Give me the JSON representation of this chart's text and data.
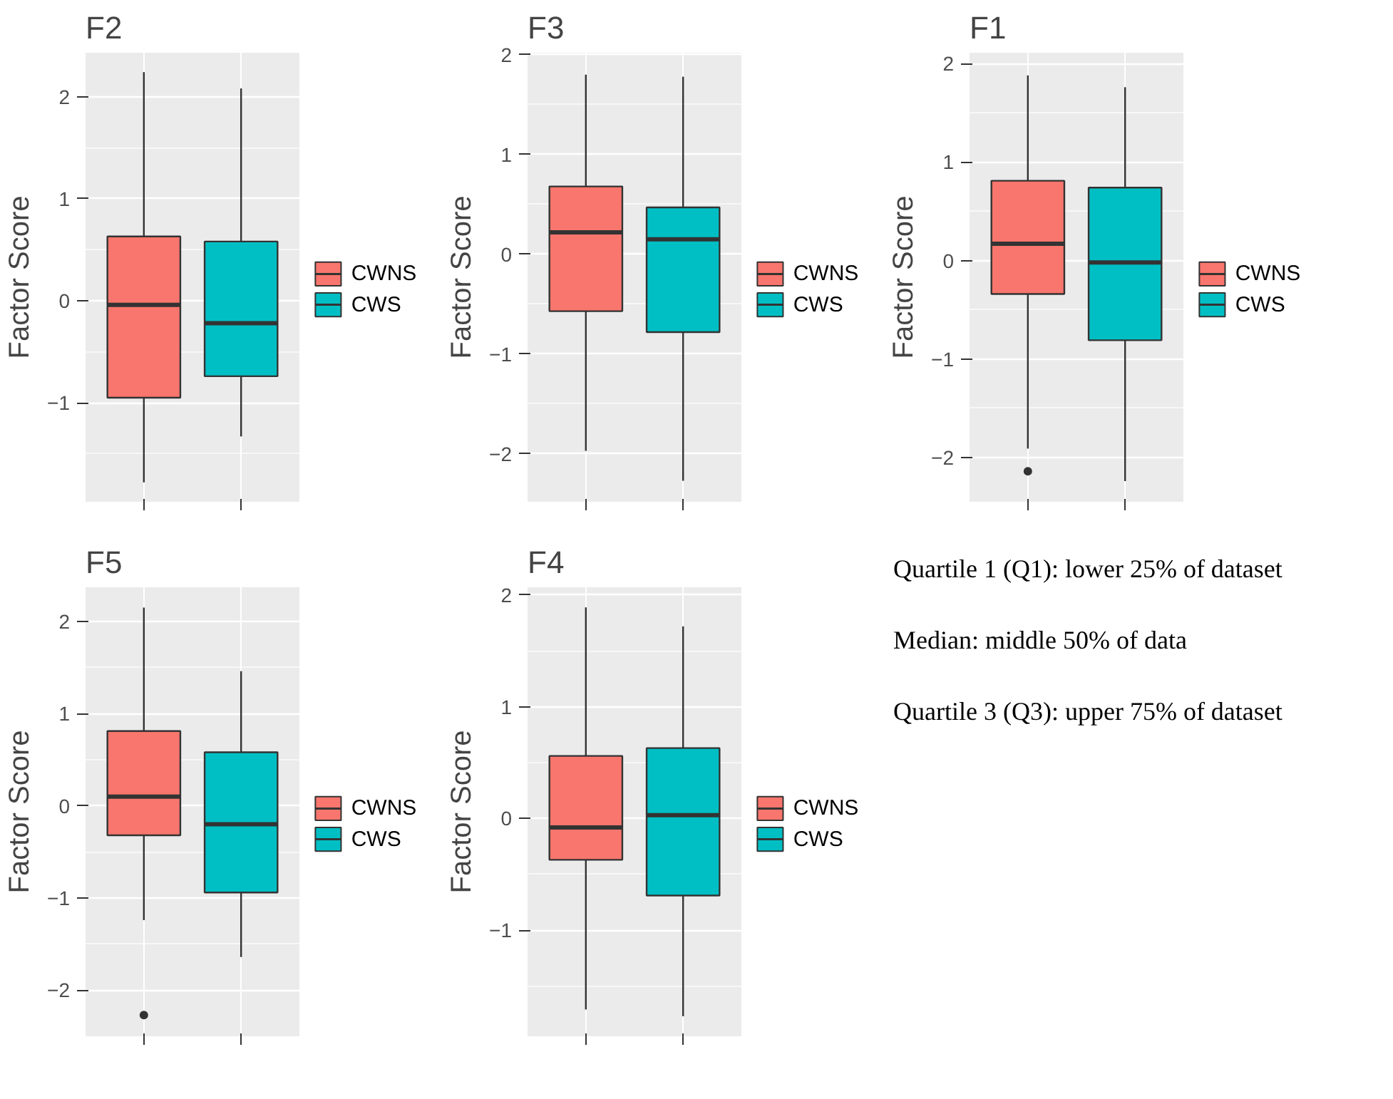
{
  "chart_data": [
    {
      "type": "box",
      "title": "F2",
      "ylabel": "Factor Score",
      "categories": [
        null,
        null
      ],
      "ylim": [
        -1.97,
        2.43
      ],
      "yticks": [
        -1,
        0,
        1,
        2
      ],
      "grid": true,
      "legend": "right",
      "tick_labels": "y",
      "series": [
        {
          "name": "CWNS",
          "color": "#f8766d",
          "boxes": [
            {
              "low": -1.78,
              "q1": -0.95,
              "median": -0.04,
              "q3": 0.63,
              "high": 2.24
            },
            null
          ]
        },
        {
          "name": "CWS",
          "color": "#00bfc4",
          "boxes": [
            null,
            {
              "low": -1.33,
              "q1": -0.74,
              "median": -0.22,
              "q3": 0.58,
              "high": 2.08
            }
          ]
        }
      ]
    },
    {
      "type": "box",
      "title": "F3",
      "ylabel": "Factor Score",
      "categories": [
        null,
        null
      ],
      "ylim": [
        -2.48,
        2.02
      ],
      "yticks": [
        -2,
        -1,
        0,
        1,
        2
      ],
      "grid": true,
      "legend": "right",
      "tick_labels": "y",
      "series": [
        {
          "name": "CWNS",
          "color": "#f8766d",
          "boxes": [
            {
              "low": -1.97,
              "q1": -0.57,
              "median": 0.22,
              "q3": 0.68,
              "high": 1.8
            },
            null
          ]
        },
        {
          "name": "CWS",
          "color": "#00bfc4",
          "boxes": [
            null,
            {
              "low": -2.27,
              "q1": -0.78,
              "median": 0.15,
              "q3": 0.47,
              "high": 1.78
            }
          ]
        }
      ]
    },
    {
      "type": "box",
      "title": "F1",
      "ylabel": "Factor Score",
      "categories": [
        null,
        null
      ],
      "ylim": [
        -2.45,
        2.11
      ],
      "yticks": [
        -2,
        -1,
        0,
        1,
        2
      ],
      "grid": true,
      "legend": "right",
      "tick_labels": "y",
      "series": [
        {
          "name": "CWNS",
          "color": "#f8766d",
          "boxes": [
            {
              "low": -1.91,
              "q1": -0.34,
              "median": 0.17,
              "q3": 0.81,
              "high": 1.88,
              "outliers": [
                -2.14
              ]
            },
            null
          ]
        },
        {
          "name": "CWS",
          "color": "#00bfc4",
          "boxes": [
            null,
            {
              "low": -2.24,
              "q1": -0.81,
              "median": -0.02,
              "q3": 0.74,
              "high": 1.76
            }
          ]
        }
      ]
    },
    {
      "type": "box",
      "title": "F5",
      "ylabel": "Factor Score",
      "categories": [
        null,
        null
      ],
      "ylim": [
        -2.5,
        2.37
      ],
      "yticks": [
        -2,
        -1,
        0,
        1,
        2
      ],
      "grid": true,
      "legend": "right",
      "tick_labels": "y",
      "series": [
        {
          "name": "CWNS",
          "color": "#f8766d",
          "boxes": [
            {
              "low": -1.24,
              "q1": -0.32,
              "median": 0.1,
              "q3": 0.81,
              "high": 2.15,
              "outliers": [
                -2.27
              ]
            },
            null
          ]
        },
        {
          "name": "CWS",
          "color": "#00bfc4",
          "boxes": [
            null,
            {
              "low": -1.64,
              "q1": -0.94,
              "median": -0.2,
              "q3": 0.58,
              "high": 1.46
            }
          ]
        }
      ]
    },
    {
      "type": "box",
      "title": "F4",
      "ylabel": "Factor Score",
      "categories": [
        null,
        null
      ],
      "ylim": [
        -1.95,
        2.07
      ],
      "yticks": [
        -1,
        0,
        1,
        2
      ],
      "grid": true,
      "legend": "right",
      "tick_labels": "y",
      "series": [
        {
          "name": "CWNS",
          "color": "#f8766d",
          "boxes": [
            {
              "low": -1.71,
              "q1": -0.37,
              "median": -0.08,
              "q3": 0.56,
              "high": 1.89
            },
            null
          ]
        },
        {
          "name": "CWS",
          "color": "#00bfc4",
          "boxes": [
            null,
            {
              "low": -1.77,
              "q1": -0.69,
              "median": 0.03,
              "q3": 0.63,
              "high": 1.72
            }
          ]
        }
      ]
    },
    {
      "type": "other",
      "annotations": [
        "Quartile 1 (Q1): lower 25% of dataset",
        "Median: middle 50% of data",
        "Quartile 3 (Q3): upper 75% of dataset"
      ]
    }
  ]
}
